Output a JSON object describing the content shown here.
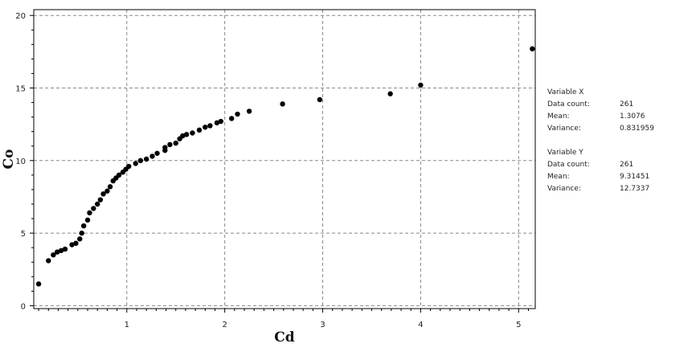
{
  "chart_data": {
    "type": "scatter",
    "xlabel": "Cd",
    "ylabel": "Co",
    "xlim": [
      0.05,
      5.17
    ],
    "ylim": [
      -0.2,
      20.4
    ],
    "x_ticks": [
      "1",
      "2",
      "3",
      "4",
      "5"
    ],
    "x_tick_values": [
      1,
      2,
      3,
      4,
      5
    ],
    "y_ticks": [
      "0",
      "5",
      "10",
      "15",
      "20"
    ],
    "y_tick_values": [
      0,
      5,
      10,
      15,
      20
    ],
    "grid": true,
    "marker_color": "#000000",
    "series": [
      {
        "points": [
          [
            0.1,
            1.5
          ],
          [
            0.2,
            3.1
          ],
          [
            0.25,
            3.5
          ],
          [
            0.29,
            3.7
          ],
          [
            0.33,
            3.8
          ],
          [
            0.37,
            3.9
          ],
          [
            0.44,
            4.2
          ],
          [
            0.48,
            4.3
          ],
          [
            0.52,
            4.6
          ],
          [
            0.54,
            5.0
          ],
          [
            0.56,
            5.5
          ],
          [
            0.6,
            5.9
          ],
          [
            0.62,
            6.4
          ],
          [
            0.66,
            6.7
          ],
          [
            0.7,
            7.0
          ],
          [
            0.73,
            7.3
          ],
          [
            0.76,
            7.7
          ],
          [
            0.8,
            7.9
          ],
          [
            0.83,
            8.2
          ],
          [
            0.86,
            8.6
          ],
          [
            0.89,
            8.8
          ],
          [
            0.92,
            9.0
          ],
          [
            0.96,
            9.2
          ],
          [
            0.99,
            9.4
          ],
          [
            1.02,
            9.6
          ],
          [
            1.09,
            9.8
          ],
          [
            1.14,
            10.0
          ],
          [
            1.2,
            10.1
          ],
          [
            1.26,
            10.3
          ],
          [
            1.31,
            10.5
          ],
          [
            1.39,
            10.7
          ],
          [
            1.39,
            10.9
          ],
          [
            1.44,
            11.1
          ],
          [
            1.5,
            11.2
          ],
          [
            1.54,
            11.5
          ],
          [
            1.57,
            11.7
          ],
          [
            1.61,
            11.8
          ],
          [
            1.67,
            11.9
          ],
          [
            1.74,
            12.1
          ],
          [
            1.8,
            12.3
          ],
          [
            1.85,
            12.4
          ],
          [
            1.92,
            12.6
          ],
          [
            1.96,
            12.7
          ],
          [
            2.07,
            12.9
          ],
          [
            2.13,
            13.2
          ],
          [
            2.25,
            13.4
          ],
          [
            2.59,
            13.9
          ],
          [
            2.97,
            14.2
          ],
          [
            3.69,
            14.6
          ],
          [
            4.0,
            15.2
          ],
          [
            5.14,
            17.7
          ]
        ]
      }
    ]
  },
  "stats": {
    "x": {
      "heading": "Variable X",
      "rows": [
        {
          "label": "Data count:",
          "value": "261"
        },
        {
          "label": "Mean:",
          "value": "1.3076"
        },
        {
          "label": "Variance:",
          "value": "0.831959"
        }
      ]
    },
    "y": {
      "heading": "Variable Y",
      "rows": [
        {
          "label": "Data count:",
          "value": "261"
        },
        {
          "label": "Mean:",
          "value": "9.31451"
        },
        {
          "label": "Variance:",
          "value": "12.7337"
        }
      ]
    }
  }
}
